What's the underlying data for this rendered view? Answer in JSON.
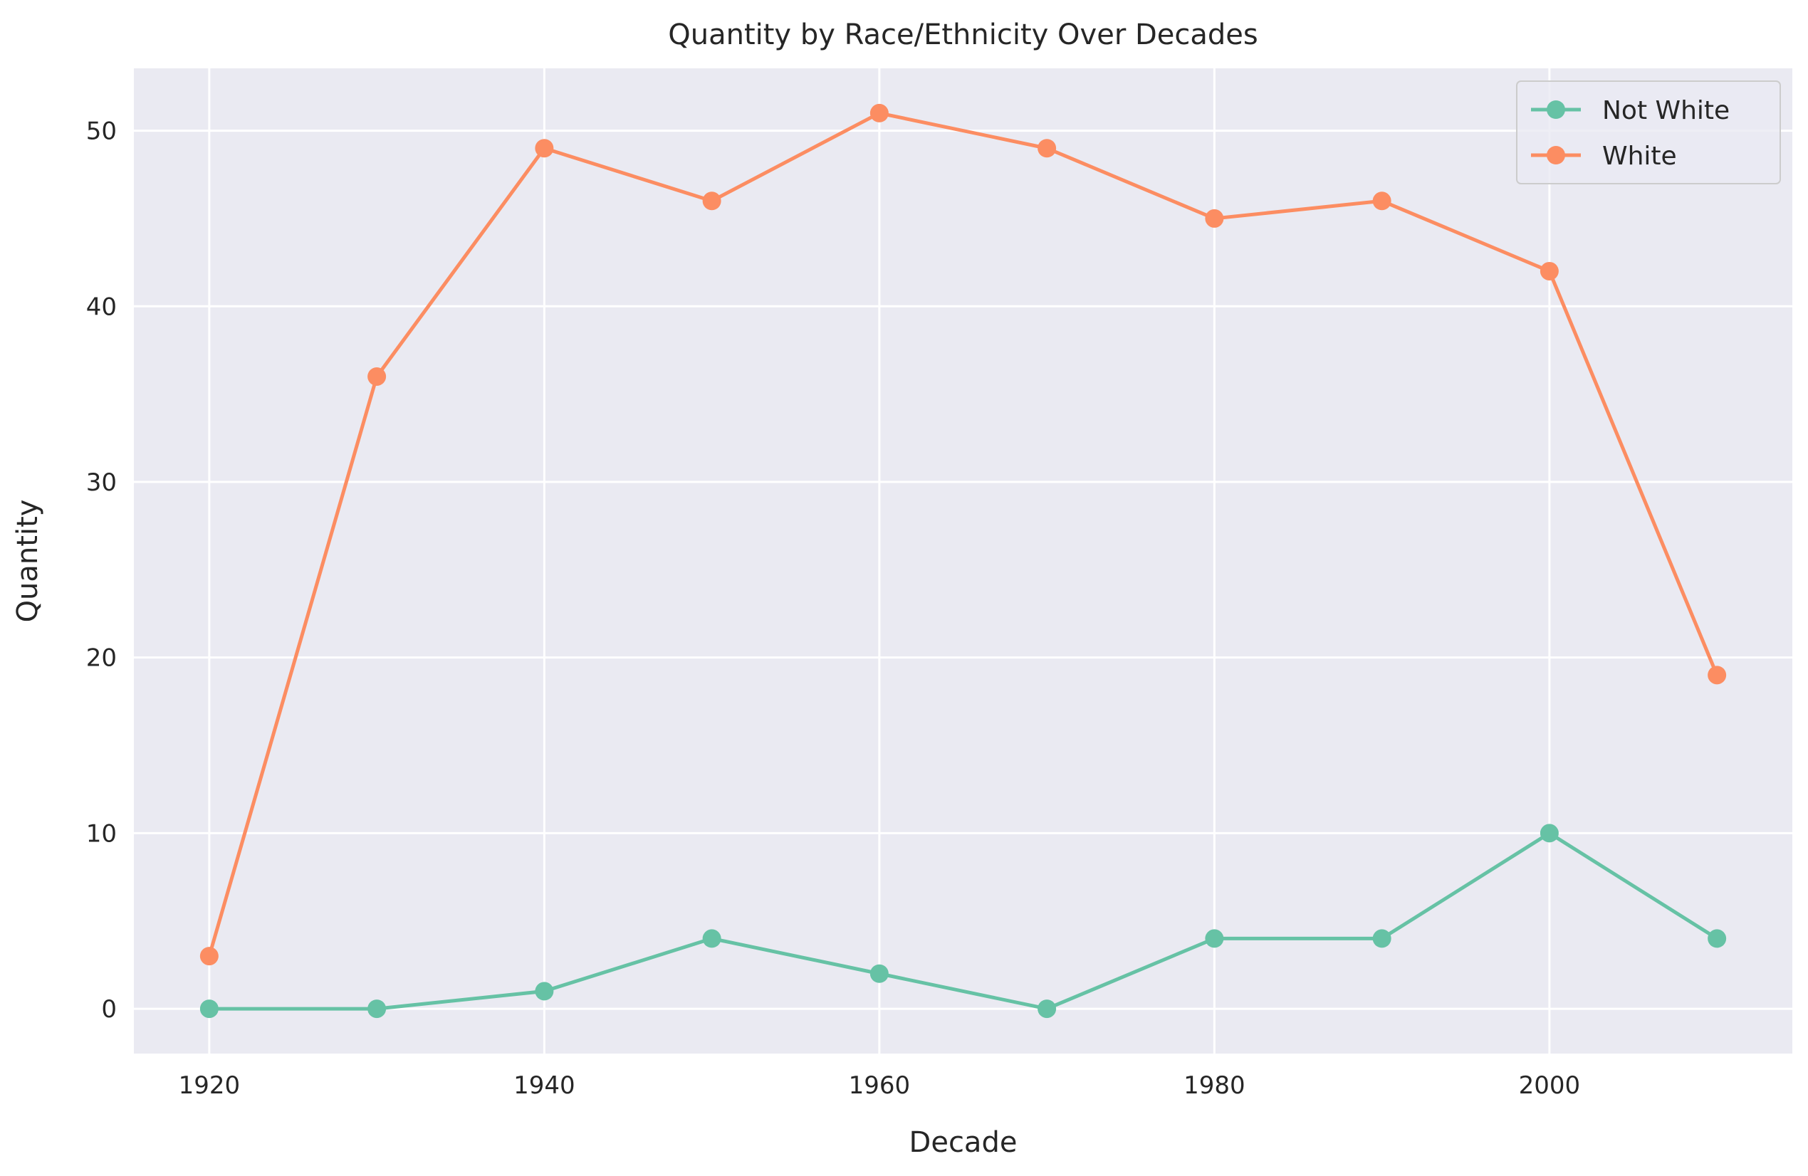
{
  "chart_data": {
    "type": "line",
    "title": "Quantity by Race/Ethnicity Over Decades",
    "xlabel": "Decade",
    "ylabel": "Quantity",
    "x": [
      1920,
      1930,
      1940,
      1950,
      1960,
      1970,
      1980,
      1990,
      2000,
      2010
    ],
    "xticks": [
      1920,
      1940,
      1960,
      1980,
      2000
    ],
    "yticks": [
      0,
      10,
      20,
      30,
      40,
      50
    ],
    "xlim": [
      1915.5,
      2014.5
    ],
    "ylim": [
      -2.55,
      53.55
    ],
    "grid": true,
    "legend_position": "top-right",
    "background_color": "#eaeaf2",
    "series": [
      {
        "name": "Not White",
        "color": "#66c2a5",
        "values": [
          0,
          0,
          1,
          4,
          2,
          0,
          4,
          4,
          10,
          4
        ]
      },
      {
        "name": "White",
        "color": "#fc8d62",
        "values": [
          3,
          36,
          49,
          46,
          51,
          49,
          45,
          46,
          42,
          19
        ]
      }
    ]
  }
}
